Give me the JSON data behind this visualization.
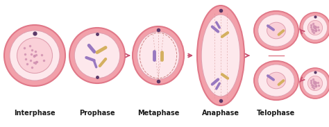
{
  "bg_color": "#ffffff",
  "phases": [
    "Interphase",
    "Prophase",
    "Metaphase",
    "Anaphase",
    "Telophase"
  ],
  "label_fontsize": 7.0,
  "label_fontweight": "bold",
  "cell_outer_color": "#f2a0aa",
  "cell_outer_edge": "#e07888",
  "cell_inner_color": "#fde8ec",
  "nucleus_color": "#fad0d8",
  "nucleus_edge": "#e0a0b0",
  "chr_purple": "#9878c0",
  "chr_yellow": "#d4b060",
  "arrow_color": "#c85070",
  "dot_color": "#5a3868",
  "spindle_color": "#e09090",
  "fig_width": 4.74,
  "fig_height": 1.83,
  "dpi": 100
}
